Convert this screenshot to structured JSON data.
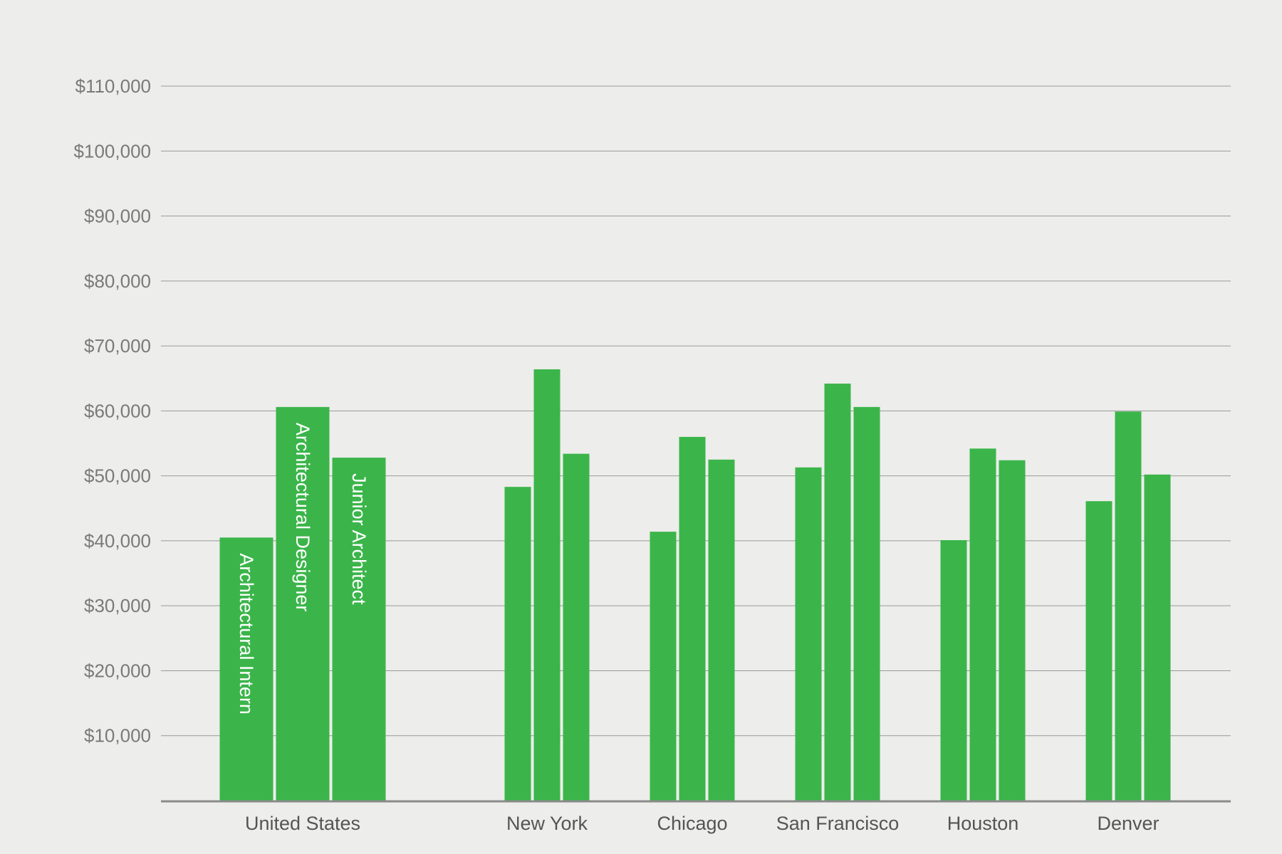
{
  "chart_data": {
    "type": "bar",
    "title": "",
    "xlabel": "",
    "ylabel": "",
    "ylim": [
      0,
      110000
    ],
    "yticks": [
      10000,
      20000,
      30000,
      40000,
      50000,
      60000,
      70000,
      80000,
      90000,
      100000,
      110000
    ],
    "ytick_labels": [
      "$10,000",
      "$20,000",
      "$30,000",
      "$40,000",
      "$50,000",
      "$60,000",
      "$70,000",
      "$80,000",
      "$90,000",
      "$100,000",
      "$110,000"
    ],
    "grid": true,
    "legend": "none",
    "bar_labels_inside": "first-group-only",
    "categories": [
      "United States",
      "New York",
      "Chicago",
      "San Francisco",
      "Houston",
      "Denver"
    ],
    "series": [
      {
        "name": "Architectural Intern",
        "values": [
          40500,
          48300,
          41400,
          51300,
          40100,
          46100
        ]
      },
      {
        "name": "Architectural Designer",
        "values": [
          60600,
          66400,
          56000,
          64200,
          54200,
          59900
        ]
      },
      {
        "name": "Junior Architect",
        "values": [
          52800,
          53400,
          52500,
          60600,
          52400,
          50200
        ]
      }
    ],
    "colors": {
      "bar": "#3bb54a",
      "gridline": "#9a9a9a",
      "axis": "#8a8a8a",
      "tick_label": "#7a7a7a",
      "category_label": "#555555",
      "bar_label": "#ffffff",
      "background": "#ededeb"
    }
  }
}
